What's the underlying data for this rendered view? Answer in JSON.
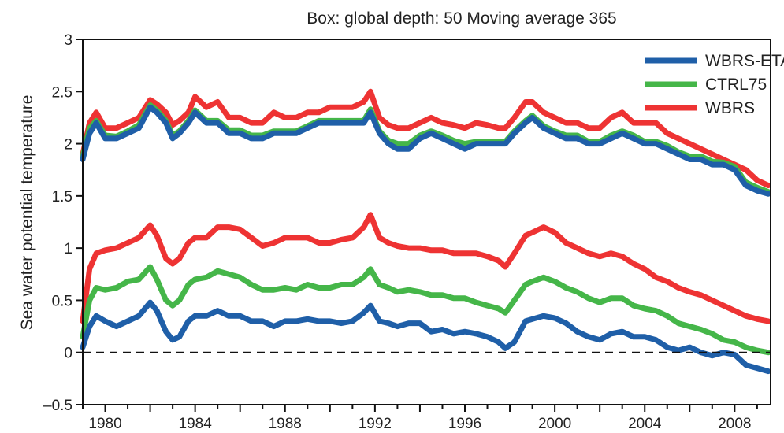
{
  "chart_data": {
    "type": "line",
    "title": "Box: global depth: 50 Moving average 365",
    "xlabel": "",
    "ylabel": "Sea water potential temperature",
    "xlim": [
      1979,
      2009.6
    ],
    "ylim": [
      -0.5,
      3
    ],
    "x_ticks": [
      1980,
      1984,
      1988,
      1992,
      1996,
      2000,
      2004,
      2008
    ],
    "y_ticks": [
      -0.5,
      0,
      0.5,
      1,
      1.5,
      2,
      2.5,
      3
    ],
    "y_tick_labels": [
      "–0.5",
      "0",
      "0.5",
      "1",
      "1.5",
      "2",
      "2.5",
      "3"
    ],
    "grid": false,
    "zero_line": "dashed",
    "legend_position": "top-right",
    "legend": [
      "WBRS-ETAU",
      "CTRL75",
      "WBRS"
    ],
    "colors": {
      "WBRS-ETAU": "#1f5fa8",
      "CTRL75": "#45b649",
      "WBRS": "#ee3333"
    },
    "x": [
      1979.0,
      1979.3,
      1979.6,
      1980.0,
      1980.5,
      1981.0,
      1981.5,
      1982.0,
      1982.3,
      1982.7,
      1983.0,
      1983.3,
      1983.7,
      1984.0,
      1984.5,
      1985.0,
      1985.5,
      1986.0,
      1986.5,
      1987.0,
      1987.5,
      1988.0,
      1988.5,
      1989.0,
      1989.5,
      1990.0,
      1990.5,
      1991.0,
      1991.5,
      1991.8,
      1992.2,
      1992.6,
      1993.0,
      1993.5,
      1994.0,
      1994.5,
      1995.0,
      1995.5,
      1996.0,
      1996.5,
      1997.0,
      1997.5,
      1997.8,
      1998.2,
      1998.7,
      1999.0,
      1999.5,
      2000.0,
      2000.5,
      2001.0,
      2001.5,
      2002.0,
      2002.5,
      2003.0,
      2003.5,
      2004.0,
      2004.5,
      2005.0,
      2005.5,
      2006.0,
      2006.5,
      2007.0,
      2007.5,
      2008.0,
      2008.5,
      2009.0,
      2009.5
    ],
    "series_top": [
      {
        "name": "WBRS-ETAU",
        "values": [
          1.85,
          2.1,
          2.2,
          2.05,
          2.05,
          2.1,
          2.15,
          2.35,
          2.3,
          2.2,
          2.05,
          2.1,
          2.2,
          2.3,
          2.2,
          2.2,
          2.1,
          2.1,
          2.05,
          2.05,
          2.1,
          2.1,
          2.1,
          2.15,
          2.2,
          2.2,
          2.2,
          2.2,
          2.2,
          2.3,
          2.1,
          2.0,
          1.95,
          1.95,
          2.05,
          2.1,
          2.05,
          2.0,
          1.95,
          2.0,
          2.0,
          2.0,
          2.0,
          2.1,
          2.2,
          2.25,
          2.15,
          2.1,
          2.05,
          2.05,
          2.0,
          2.0,
          2.05,
          2.1,
          2.05,
          2.0,
          2.0,
          1.95,
          1.9,
          1.85,
          1.85,
          1.8,
          1.8,
          1.75,
          1.6,
          1.55,
          1.52
        ]
      },
      {
        "name": "CTRL75",
        "values": [
          1.88,
          2.15,
          2.22,
          2.08,
          2.07,
          2.12,
          2.18,
          2.37,
          2.32,
          2.22,
          2.08,
          2.12,
          2.22,
          2.32,
          2.22,
          2.22,
          2.13,
          2.13,
          2.08,
          2.08,
          2.12,
          2.12,
          2.12,
          2.17,
          2.22,
          2.22,
          2.22,
          2.22,
          2.22,
          2.33,
          2.12,
          2.03,
          2.0,
          2.0,
          2.08,
          2.12,
          2.08,
          2.03,
          2.0,
          2.02,
          2.02,
          2.02,
          2.02,
          2.12,
          2.22,
          2.27,
          2.17,
          2.12,
          2.08,
          2.08,
          2.02,
          2.02,
          2.08,
          2.12,
          2.08,
          2.02,
          2.02,
          1.98,
          1.92,
          1.88,
          1.88,
          1.83,
          1.82,
          1.78,
          1.63,
          1.58,
          1.54
        ]
      },
      {
        "name": "WBRS",
        "values": [
          1.9,
          2.2,
          2.3,
          2.15,
          2.15,
          2.2,
          2.25,
          2.42,
          2.38,
          2.3,
          2.18,
          2.22,
          2.3,
          2.45,
          2.35,
          2.4,
          2.25,
          2.25,
          2.2,
          2.2,
          2.3,
          2.25,
          2.25,
          2.3,
          2.3,
          2.35,
          2.35,
          2.35,
          2.4,
          2.5,
          2.25,
          2.18,
          2.15,
          2.15,
          2.2,
          2.25,
          2.2,
          2.18,
          2.15,
          2.2,
          2.18,
          2.15,
          2.15,
          2.25,
          2.4,
          2.4,
          2.3,
          2.25,
          2.2,
          2.2,
          2.15,
          2.15,
          2.25,
          2.3,
          2.2,
          2.2,
          2.2,
          2.1,
          2.05,
          2.0,
          1.95,
          1.9,
          1.85,
          1.8,
          1.75,
          1.65,
          1.6
        ]
      }
    ],
    "series_bottom": [
      {
        "name": "WBRS-ETAU",
        "values": [
          0.05,
          0.25,
          0.35,
          0.3,
          0.25,
          0.3,
          0.35,
          0.48,
          0.4,
          0.2,
          0.12,
          0.15,
          0.3,
          0.35,
          0.35,
          0.4,
          0.35,
          0.35,
          0.3,
          0.3,
          0.25,
          0.3,
          0.3,
          0.32,
          0.3,
          0.3,
          0.28,
          0.3,
          0.38,
          0.45,
          0.3,
          0.28,
          0.25,
          0.28,
          0.28,
          0.2,
          0.22,
          0.18,
          0.2,
          0.18,
          0.15,
          0.1,
          0.04,
          0.1,
          0.3,
          0.32,
          0.35,
          0.33,
          0.28,
          0.2,
          0.15,
          0.12,
          0.18,
          0.2,
          0.15,
          0.15,
          0.12,
          0.05,
          0.02,
          0.05,
          0.0,
          -0.03,
          0.0,
          -0.02,
          -0.12,
          -0.15,
          -0.18
        ]
      },
      {
        "name": "CTRL75",
        "values": [
          0.15,
          0.5,
          0.62,
          0.6,
          0.62,
          0.68,
          0.7,
          0.82,
          0.7,
          0.5,
          0.45,
          0.5,
          0.65,
          0.7,
          0.72,
          0.78,
          0.75,
          0.72,
          0.65,
          0.6,
          0.6,
          0.62,
          0.6,
          0.65,
          0.62,
          0.62,
          0.65,
          0.65,
          0.72,
          0.8,
          0.65,
          0.62,
          0.58,
          0.6,
          0.58,
          0.55,
          0.55,
          0.52,
          0.52,
          0.48,
          0.45,
          0.42,
          0.38,
          0.5,
          0.65,
          0.68,
          0.72,
          0.68,
          0.62,
          0.58,
          0.52,
          0.48,
          0.52,
          0.52,
          0.45,
          0.42,
          0.4,
          0.35,
          0.28,
          0.25,
          0.22,
          0.18,
          0.12,
          0.1,
          0.05,
          0.02,
          0.0
        ]
      },
      {
        "name": "WBRS",
        "values": [
          0.3,
          0.8,
          0.95,
          0.98,
          1.0,
          1.05,
          1.1,
          1.22,
          1.12,
          0.9,
          0.85,
          0.9,
          1.05,
          1.1,
          1.1,
          1.2,
          1.2,
          1.18,
          1.1,
          1.02,
          1.05,
          1.1,
          1.1,
          1.1,
          1.05,
          1.05,
          1.08,
          1.1,
          1.2,
          1.32,
          1.1,
          1.05,
          1.02,
          1.0,
          1.0,
          0.98,
          0.98,
          0.95,
          0.95,
          0.95,
          0.92,
          0.88,
          0.82,
          0.95,
          1.12,
          1.15,
          1.2,
          1.15,
          1.05,
          1.0,
          0.95,
          0.92,
          0.95,
          0.92,
          0.85,
          0.8,
          0.72,
          0.68,
          0.62,
          0.58,
          0.55,
          0.5,
          0.45,
          0.4,
          0.35,
          0.32,
          0.3
        ]
      }
    ]
  }
}
